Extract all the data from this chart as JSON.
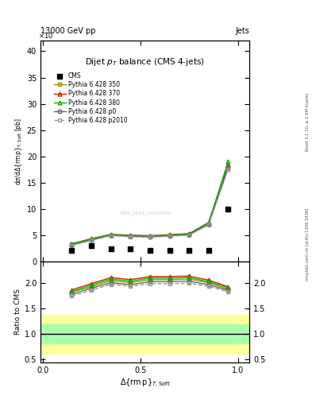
{
  "x_values": [
    0.15,
    0.25,
    0.35,
    0.45,
    0.55,
    0.65,
    0.75,
    0.85,
    0.95
  ],
  "cms_data": [
    2.2,
    3.1,
    2.5,
    2.5,
    2.2,
    2.2,
    2.2,
    2.2,
    10.0
  ],
  "p350_data": [
    3.3,
    4.2,
    5.1,
    4.9,
    4.8,
    5.0,
    5.2,
    7.2,
    18.0
  ],
  "p370_data": [
    3.4,
    4.4,
    5.2,
    5.05,
    4.95,
    5.15,
    5.35,
    7.45,
    18.5
  ],
  "p380_data": [
    3.35,
    4.35,
    5.15,
    4.98,
    4.88,
    5.08,
    5.28,
    7.35,
    19.0
  ],
  "pp0_data": [
    3.2,
    4.15,
    5.05,
    4.85,
    4.75,
    4.95,
    5.15,
    7.1,
    17.8
  ],
  "pp2010_data": [
    3.1,
    4.05,
    4.95,
    4.75,
    4.65,
    4.85,
    5.05,
    7.0,
    17.6
  ],
  "ratio_p350": [
    1.82,
    1.93,
    2.05,
    2.01,
    2.07,
    2.07,
    2.08,
    2.01,
    1.88
  ],
  "ratio_p370": [
    1.87,
    1.99,
    2.11,
    2.07,
    2.13,
    2.13,
    2.14,
    2.06,
    1.93
  ],
  "ratio_p380": [
    1.84,
    1.96,
    2.08,
    2.04,
    2.1,
    2.1,
    2.11,
    2.03,
    1.91
  ],
  "ratio_pp0": [
    1.78,
    1.9,
    2.01,
    1.97,
    2.03,
    2.03,
    2.04,
    1.97,
    1.86
  ],
  "ratio_pp2010": [
    1.75,
    1.86,
    1.98,
    1.94,
    1.99,
    1.99,
    2.0,
    1.94,
    1.83
  ],
  "green_band": [
    0.82,
    1.2
  ],
  "yellow_band": [
    0.62,
    1.38
  ],
  "color_p350": "#999900",
  "color_p370": "#cc2200",
  "color_p380": "#00bb00",
  "color_pp0": "#666666",
  "color_pp2010": "#999999",
  "ylim_main": [
    0,
    42
  ],
  "ylim_ratio": [
    0.45,
    2.42
  ],
  "yticks_main": [
    0,
    5,
    10,
    15,
    20,
    25,
    30,
    35,
    40
  ],
  "yticks_ratio": [
    0.5,
    1.0,
    1.5,
    2.0
  ],
  "xticks": [
    0,
    0.5,
    1.0
  ],
  "header_left": "13000 GeV pp",
  "header_right": "Jets",
  "plot_title": "Dijet $p_T$ balance (CMS 4-jets)",
  "cms_watermark": "CMS_2021_I1932460",
  "rivet_label": "Rivet 3.1.10, ≥ 2.6M events",
  "mcplots_label": "mcplots.cern.ch [arXiv:1306.3436]",
  "ylabel_main": "dσ/dΔ{rm p}$_{T,Soft}$ [pb]",
  "ylabel_ratio": "Ratio to CMS",
  "xlabel": "Δ{rm p}$_{T,Soft}$"
}
